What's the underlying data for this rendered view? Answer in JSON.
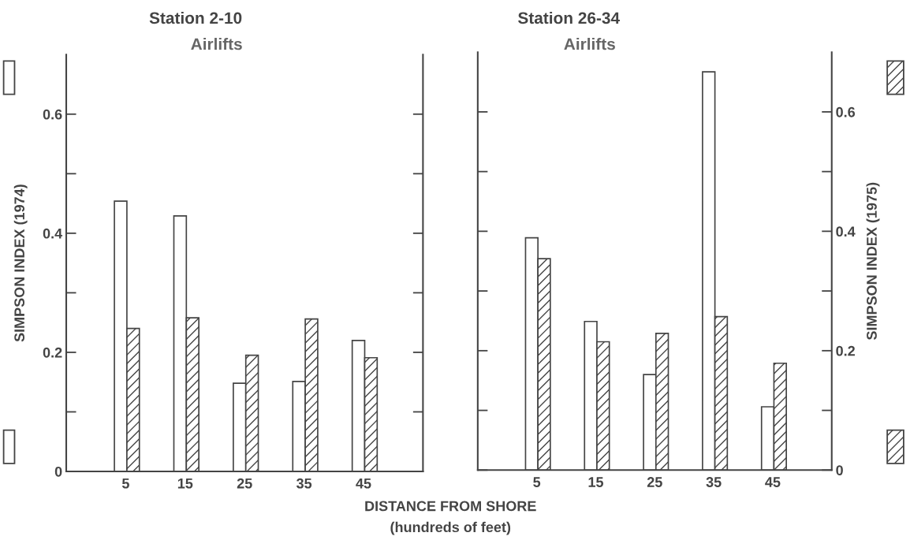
{
  "chart_data": [
    {
      "type": "bar",
      "title": "Station 2-10",
      "subtitle": "Airlifts",
      "xlabel": "DISTANCE FROM SHORE\n(hundreds of feet)",
      "ylabel": "SIMPSON INDEX (1974)",
      "x": [
        5,
        15,
        25,
        35,
        45
      ],
      "xlim": [
        -5,
        55
      ],
      "xticks": [
        5,
        15,
        25,
        35,
        45
      ],
      "ylim": [
        0,
        0.7
      ],
      "yticks": [
        0,
        {
          "value": 0.1,
          "label": null
        },
        0.2,
        {
          "value": 0.3,
          "label": null
        },
        0.4,
        {
          "value": 0.5,
          "label": null
        },
        0.6
      ],
      "series": [
        {
          "color": "#ffffff",
          "values": [
            0.454,
            0.429,
            0.148,
            0.151,
            0.22
          ]
        },
        {
          "color": "#444444",
          "values": [
            0.24,
            0.258,
            0.195,
            0.256,
            0.191
          ]
        }
      ],
      "grid": false,
      "legend": false
    },
    {
      "type": "bar",
      "title": "Station 26-34",
      "subtitle": "Airlifts",
      "y2label": "SIMPSON INDEX (1975)",
      "x": [
        5,
        15,
        25,
        35,
        45
      ],
      "xlim": [
        -5,
        55
      ],
      "xticks": [
        5,
        15,
        25,
        35,
        45
      ],
      "y2lim": [
        0,
        0.7
      ],
      "y2ticks": [
        0,
        {
          "value": 0.1,
          "label": null
        },
        0.2,
        {
          "value": 0.3,
          "label": null
        },
        0.4,
        {
          "value": 0.5,
          "label": null
        },
        0.6
      ],
      "series": [
        {
          "color": "#ffffff",
          "axis": "y2",
          "values": [
            0.389,
            0.249,
            0.16,
            0.667,
            0.106
          ]
        },
        {
          "color": "#444444",
          "axis": "y2",
          "values": [
            0.354,
            0.215,
            0.229,
            0.257,
            0.179
          ]
        }
      ],
      "grid": false,
      "legend": false
    }
  ]
}
